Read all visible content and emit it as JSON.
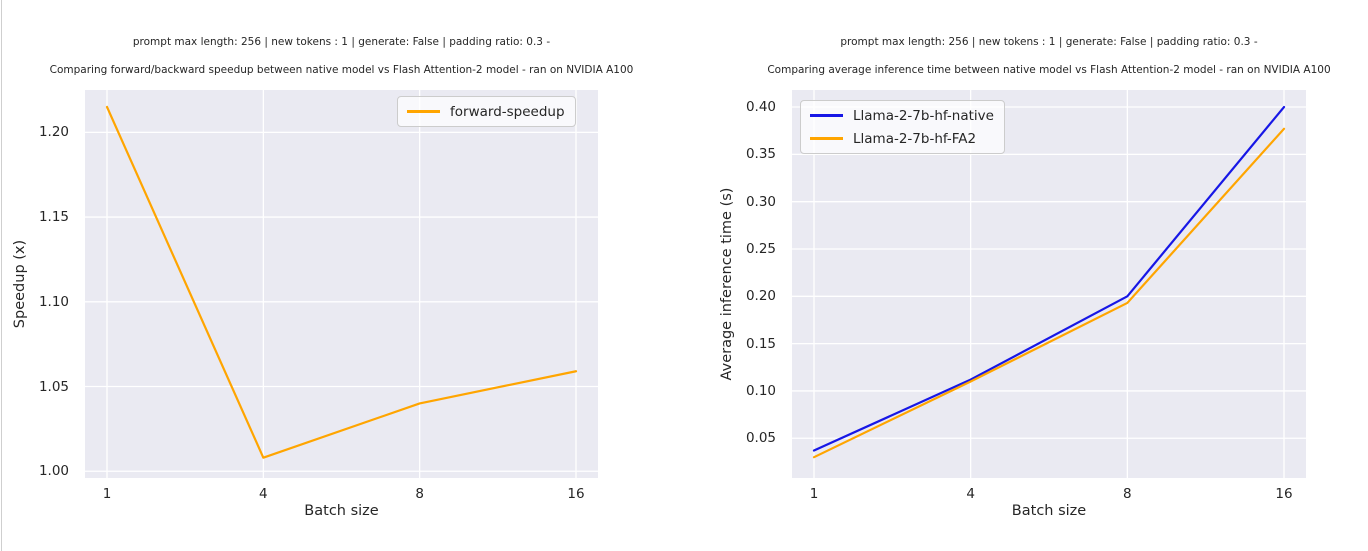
{
  "page": {
    "background": "#ffffff",
    "left_border_color": "#cfcfcf",
    "plot_background": "#eaeaf2",
    "grid_color": "#ffffff",
    "text_color": "#262626"
  },
  "chart_data": [
    {
      "type": "line",
      "suptitle": "prompt max length: 256 | new tokens : 1 | generate: False | padding ratio: 0.3 -",
      "title": "Comparing forward/backward speedup between native model vs Flash Attention-2 model - ran on NVIDIA A100",
      "xlabel": "Batch size",
      "ylabel": "Speedup (x)",
      "categories": [
        "1",
        "4",
        "8",
        "16"
      ],
      "ytick_values": [
        1.0,
        1.05,
        1.1,
        1.15,
        1.2
      ],
      "ytick_labels": [
        "1.00",
        "1.05",
        "1.10",
        "1.15",
        "1.20"
      ],
      "ylim": [
        0.996,
        1.225
      ],
      "grid": true,
      "legend_position": "upper right",
      "series": [
        {
          "name": "forward-speedup",
          "color": "#ffa500",
          "values": [
            1.215,
            1.008,
            1.04,
            1.059
          ]
        }
      ]
    },
    {
      "type": "line",
      "suptitle": "prompt max length: 256 | new tokens : 1 | generate: False | padding ratio: 0.3 -",
      "title": "Comparing average inference time between native model vs Flash Attention-2 model - ran on NVIDIA A100",
      "xlabel": "Batch size",
      "ylabel": "Average inference time (s)",
      "categories": [
        "1",
        "4",
        "8",
        "16"
      ],
      "ytick_values": [
        0.05,
        0.1,
        0.15,
        0.2,
        0.25,
        0.3,
        0.35,
        0.4
      ],
      "ytick_labels": [
        "0.05",
        "0.10",
        "0.15",
        "0.20",
        "0.25",
        "0.30",
        "0.35",
        "0.40"
      ],
      "ylim": [
        0.008,
        0.418
      ],
      "grid": true,
      "legend_position": "upper left",
      "series": [
        {
          "name": "Llama-2-7b-hf-native",
          "color": "#1717e6",
          "values": [
            0.037,
            0.112,
            0.2,
            0.4
          ]
        },
        {
          "name": "Llama-2-7b-hf-FA2",
          "color": "#ffa500",
          "values": [
            0.03,
            0.11,
            0.193,
            0.377
          ]
        }
      ]
    }
  ]
}
